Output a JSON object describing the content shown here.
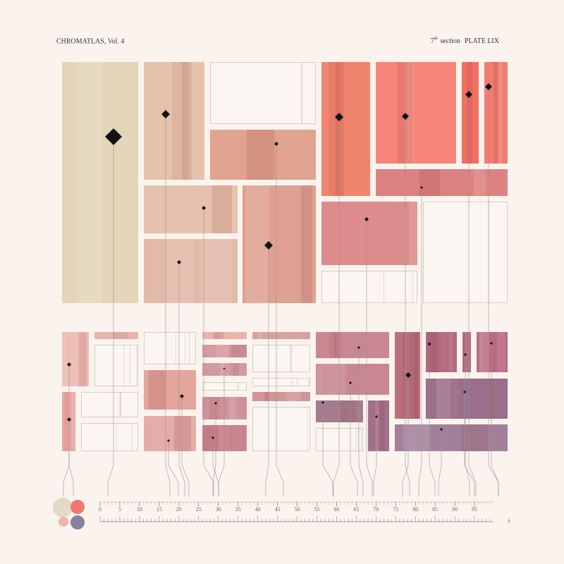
{
  "header": {
    "title": "CHROMATLAS, Vol. 4",
    "section_number": "7",
    "section_suffix": "th",
    "section_label": "section",
    "plate": "PLATE LIX"
  },
  "scale": {
    "ticks": [
      0,
      5,
      10,
      15,
      20,
      25,
      30,
      35,
      40,
      45,
      50,
      55,
      60,
      65,
      70,
      75,
      80,
      85,
      90,
      95
    ],
    "unit": "λ"
  }
}
